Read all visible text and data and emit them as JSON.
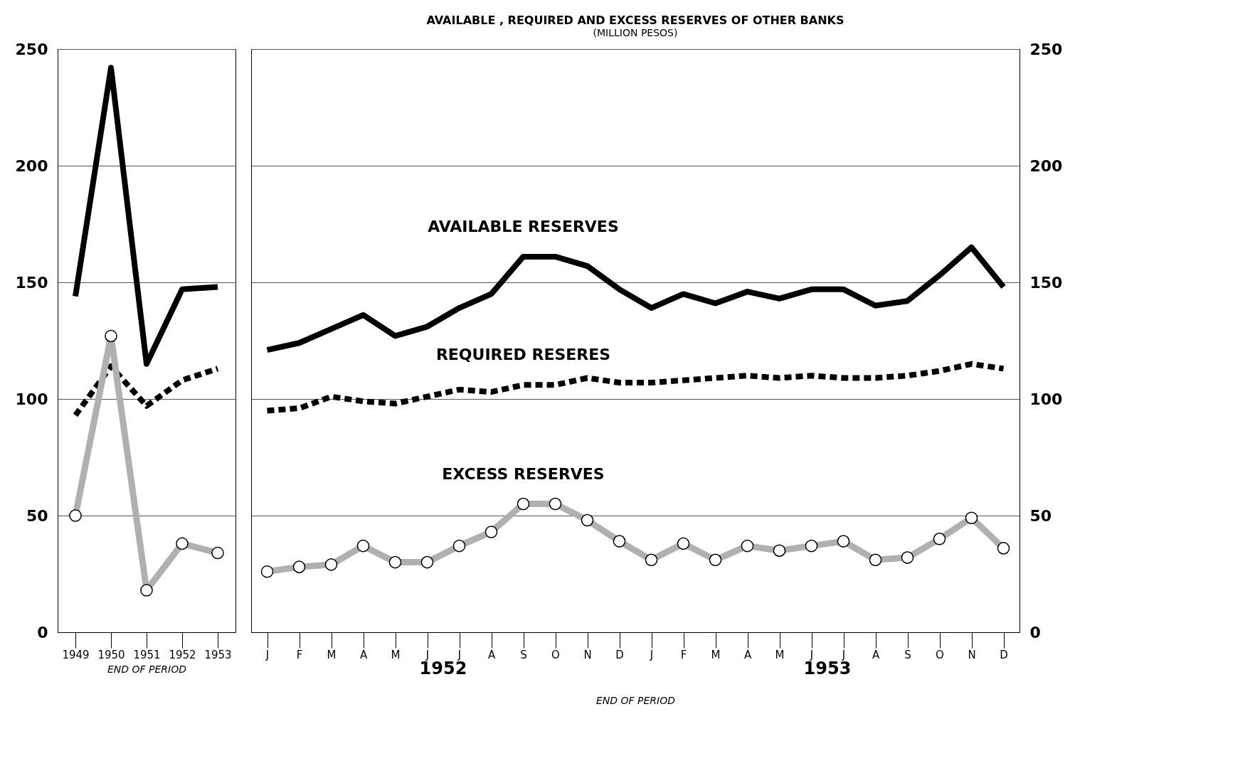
{
  "chart_data": [
    {
      "type": "line",
      "categories": [
        "1949",
        "1950",
        "1951",
        "1952",
        "1953"
      ],
      "xlabel": "END OF PERIOD",
      "ylim": [
        0,
        250
      ],
      "yticks": [
        0,
        50,
        100,
        150,
        200,
        250
      ],
      "grid": "y",
      "legend": false,
      "series": [
        {
          "color": "#000000",
          "line_style": "solid",
          "marker": "none",
          "values": [
            144,
            242,
            115,
            147,
            148
          ]
        },
        {
          "color": "#000000",
          "line_style": "dashed",
          "marker": "none",
          "values": [
            93,
            114,
            97,
            108,
            113
          ]
        },
        {
          "color": "#b0b0b0",
          "line_style": "solid",
          "marker": "circle",
          "values": [
            50,
            127,
            18,
            38,
            34
          ]
        }
      ]
    },
    {
      "type": "line",
      "title": "AVAILABLE , REQUIRED AND EXCESS RESERVES OF OTHER BANKS",
      "subtitle": "(MILLION PESOS)",
      "categories": [
        "J",
        "F",
        "M",
        "A",
        "M",
        "J",
        "J",
        "A",
        "S",
        "O",
        "N",
        "D",
        "J",
        "F",
        "M",
        "A",
        "M",
        "J",
        "J",
        "A",
        "S",
        "O",
        "N",
        "D"
      ],
      "xlabel": "END OF PERIOD",
      "y2lim": [
        0,
        250
      ],
      "y2ticks": [
        0,
        50,
        100,
        150,
        200,
        250
      ],
      "grid": "y",
      "legend": false,
      "annotations": [
        "1952",
        "1953"
      ],
      "series": [
        {
          "name": "AVAILABLE RESERVES",
          "axis": "y2",
          "color": "#000000",
          "line_style": "solid",
          "marker": "none",
          "values": [
            121,
            124,
            130,
            136,
            127,
            131,
            139,
            145,
            161,
            161,
            157,
            147,
            139,
            145,
            141,
            146,
            143,
            147,
            147,
            140,
            142,
            153,
            165,
            148
          ]
        },
        {
          "name": "REQUIRED RESERES",
          "axis": "y2",
          "color": "#000000",
          "line_style": "dashed",
          "marker": "none",
          "values": [
            95,
            96,
            101,
            99,
            98,
            101,
            104,
            103,
            106,
            106,
            109,
            107,
            107,
            108,
            109,
            110,
            109,
            110,
            109,
            109,
            110,
            112,
            115,
            113
          ]
        },
        {
          "name": "EXCESS RESERVES",
          "axis": "y2",
          "color": "#b0b0b0",
          "line_style": "solid",
          "marker": "circle",
          "values": [
            26,
            28,
            29,
            37,
            30,
            30,
            37,
            43,
            55,
            55,
            48,
            39,
            31,
            38,
            31,
            37,
            35,
            37,
            39,
            31,
            32,
            40,
            49,
            36
          ]
        }
      ]
    }
  ]
}
